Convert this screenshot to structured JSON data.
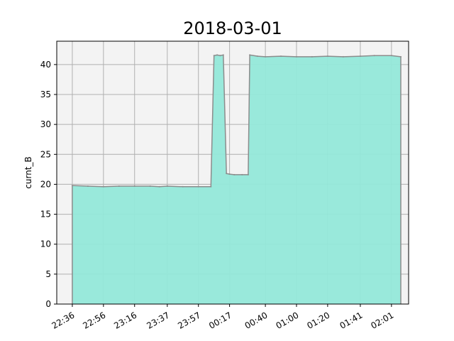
{
  "chart_data": {
    "type": "area",
    "title": "2018-03-01",
    "xlabel": "",
    "ylabel": "curnt_B",
    "ylim": [
      0,
      43.9
    ],
    "xlim": [
      "22:26",
      "02:12"
    ],
    "grid": true,
    "fill_color": "#94e8d9",
    "line_color": "#8c8c8c",
    "plot_background": "#f3f3f3",
    "x_ticks": [
      "22:36",
      "22:56",
      "23:16",
      "23:37",
      "23:57",
      "00:17",
      "00:40",
      "01:00",
      "01:20",
      "01:41",
      "02:01"
    ],
    "y_ticks": [
      0,
      5,
      10,
      15,
      20,
      25,
      30,
      35,
      40
    ],
    "x": [
      "22:36",
      "22:46",
      "22:56",
      "23:06",
      "23:16",
      "23:26",
      "23:32",
      "23:37",
      "23:47",
      "23:57",
      "24:05",
      "24:07",
      "24:09",
      "24:11",
      "24:13",
      "24:15",
      "24:17",
      "24:20",
      "24:25",
      "24:29",
      "24:30",
      "24:35",
      "24:40",
      "24:50",
      "25:00",
      "25:10",
      "25:20",
      "25:30",
      "25:41",
      "25:50",
      "26:01",
      "26:07"
    ],
    "values": [
      19.8,
      19.7,
      19.6,
      19.7,
      19.7,
      19.7,
      19.6,
      19.7,
      19.6,
      19.6,
      19.6,
      41.5,
      41.6,
      41.5,
      41.6,
      21.8,
      21.7,
      21.6,
      21.6,
      21.6,
      41.6,
      41.4,
      41.3,
      41.4,
      41.3,
      41.3,
      41.4,
      41.3,
      41.4,
      41.5,
      41.5,
      41.3
    ]
  }
}
